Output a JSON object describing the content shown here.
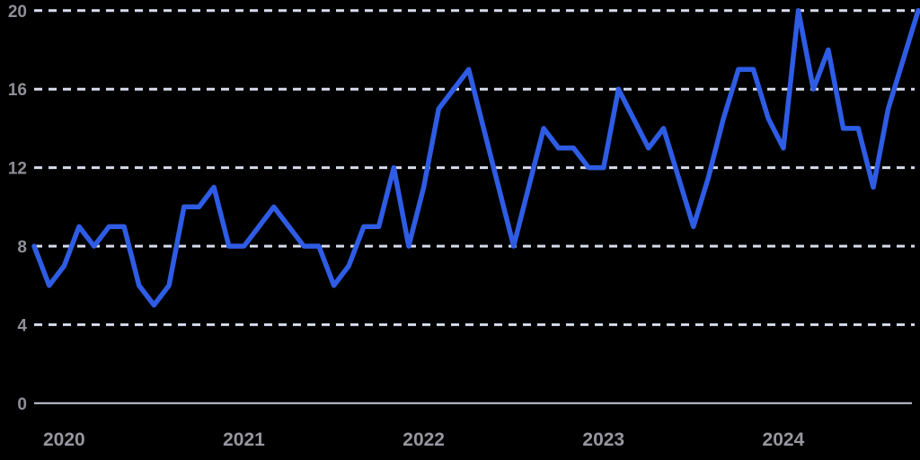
{
  "chart_data": {
    "type": "line",
    "title": "",
    "xlabel": "",
    "ylabel": "",
    "legend": "none",
    "grid": "horizontal-dashed",
    "ylim": [
      0,
      20
    ],
    "yticks": [
      0,
      4,
      8,
      12,
      16,
      20
    ],
    "x": [
      "2019-11",
      "2019-12",
      "2020-01",
      "2020-02",
      "2020-03",
      "2020-04",
      "2020-05",
      "2020-06",
      "2020-07",
      "2020-08",
      "2020-09",
      "2020-10",
      "2020-11",
      "2020-12",
      "2021-01",
      "2021-02",
      "2021-03",
      "2021-04",
      "2021-05",
      "2021-06",
      "2021-07",
      "2021-08",
      "2021-09",
      "2021-10",
      "2021-11",
      "2021-12",
      "2022-01",
      "2022-02",
      "2022-03",
      "2022-04",
      "2022-05",
      "2022-06",
      "2022-07",
      "2022-08",
      "2022-09",
      "2022-10",
      "2022-11",
      "2022-12",
      "2023-01",
      "2023-02",
      "2023-03",
      "2023-04",
      "2023-05",
      "2023-06",
      "2023-07",
      "2023-08",
      "2023-09",
      "2023-10",
      "2023-11",
      "2023-12",
      "2024-01",
      "2024-02",
      "2024-03",
      "2024-04",
      "2024-05",
      "2024-06",
      "2024-07",
      "2024-08",
      "2024-09",
      "2024-10"
    ],
    "values": [
      8,
      6,
      7,
      9,
      8,
      9,
      9,
      6,
      5,
      6,
      10,
      10,
      11,
      8,
      8,
      9,
      10,
      9,
      8,
      8,
      6,
      7,
      9,
      9,
      12,
      8,
      11,
      15,
      16,
      17,
      14,
      11,
      8,
      11,
      14,
      13,
      13,
      12,
      12,
      16,
      14.5,
      13,
      14,
      11.5,
      9,
      11.5,
      14.5,
      17,
      17,
      14.5,
      13,
      20,
      16,
      18,
      14,
      14,
      11,
      15,
      17.5,
      20
    ],
    "x_year_ticks": [
      {
        "label": "2020",
        "month_index": 2
      },
      {
        "label": "2021",
        "month_index": 14
      },
      {
        "label": "2022",
        "month_index": 26
      },
      {
        "label": "2023",
        "month_index": 38
      },
      {
        "label": "2024",
        "month_index": 50
      }
    ],
    "colors": {
      "background": "#000000",
      "line": "#2e5ce4",
      "gridline_dashed": "#d7dcec",
      "axis_zero_line": "#c6cbda",
      "y_tick_label": "#8f8f98",
      "x_tick_label": "#98979f"
    }
  }
}
